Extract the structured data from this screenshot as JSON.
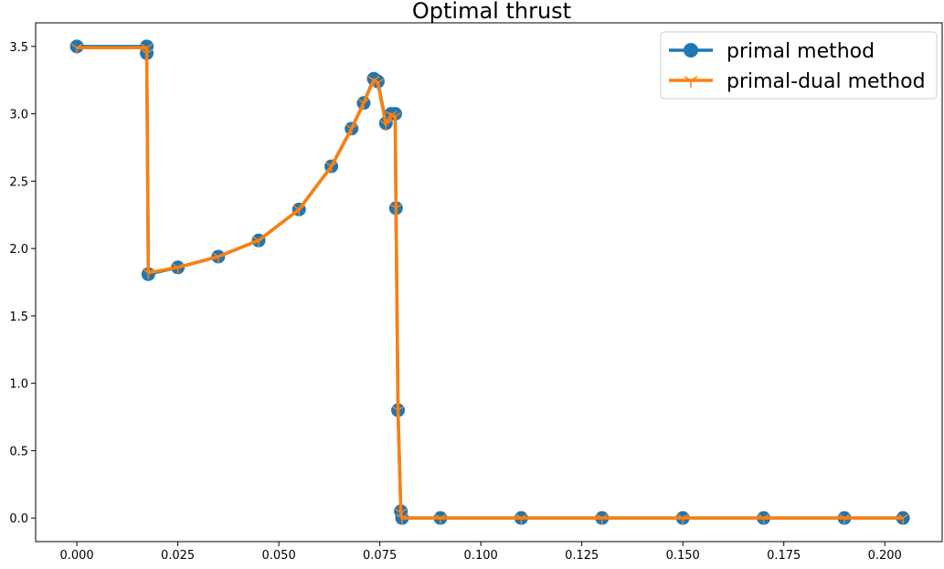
{
  "chart_data": {
    "type": "line",
    "title": "Optimal thrust",
    "xlabel": "",
    "ylabel": "",
    "xlim": [
      -0.0102,
      0.2142
    ],
    "ylim": [
      -0.175,
      3.675
    ],
    "xticks": [
      0.0,
      0.025,
      0.05,
      0.075,
      0.1,
      0.125,
      0.15,
      0.175,
      0.2
    ],
    "xtick_labels": [
      "0.000",
      "0.025",
      "0.050",
      "0.075",
      "0.100",
      "0.125",
      "0.150",
      "0.175",
      "0.200"
    ],
    "yticks": [
      0.0,
      0.5,
      1.0,
      1.5,
      2.0,
      2.5,
      3.0,
      3.5
    ],
    "ytick_labels": [
      "0.0",
      "0.5",
      "1.0",
      "1.5",
      "2.0",
      "2.5",
      "3.0",
      "3.5"
    ],
    "grid": false,
    "legend_position": "top-right",
    "series": [
      {
        "name": "primal method",
        "color": "#1f77b4",
        "marker": "circle",
        "x": [
          0.0,
          0.0173,
          0.0173,
          0.0177,
          0.025,
          0.035,
          0.045,
          0.055,
          0.063,
          0.068,
          0.071,
          0.0735,
          0.0745,
          0.0765,
          0.0778,
          0.0788,
          0.079,
          0.0795,
          0.0802,
          0.0805,
          0.09,
          0.11,
          0.13,
          0.15,
          0.17,
          0.19,
          0.2045
        ],
        "y": [
          3.5,
          3.5,
          3.45,
          1.81,
          1.86,
          1.94,
          2.06,
          2.29,
          2.61,
          2.89,
          3.08,
          3.26,
          3.24,
          2.93,
          3.0,
          3.0,
          2.3,
          0.8,
          0.05,
          0.0,
          0.0,
          0.0,
          0.0,
          0.0,
          0.0,
          0.0,
          0.0
        ]
      },
      {
        "name": "primal-dual method",
        "color": "#ff7f0e",
        "marker": "tri_down",
        "x": [
          0.0,
          0.0173,
          0.0173,
          0.0177,
          0.025,
          0.035,
          0.045,
          0.055,
          0.063,
          0.068,
          0.071,
          0.0735,
          0.0745,
          0.0765,
          0.0778,
          0.0788,
          0.079,
          0.0795,
          0.0802,
          0.0805,
          0.09,
          0.11,
          0.13,
          0.15,
          0.17,
          0.19,
          0.2045
        ],
        "y": [
          3.49,
          3.49,
          3.45,
          1.82,
          1.86,
          1.94,
          2.06,
          2.29,
          2.61,
          2.89,
          3.08,
          3.25,
          3.23,
          2.92,
          2.99,
          2.98,
          2.3,
          0.8,
          0.04,
          0.0,
          0.0,
          0.0,
          0.0,
          0.0,
          0.0,
          0.0,
          0.0
        ]
      }
    ]
  }
}
